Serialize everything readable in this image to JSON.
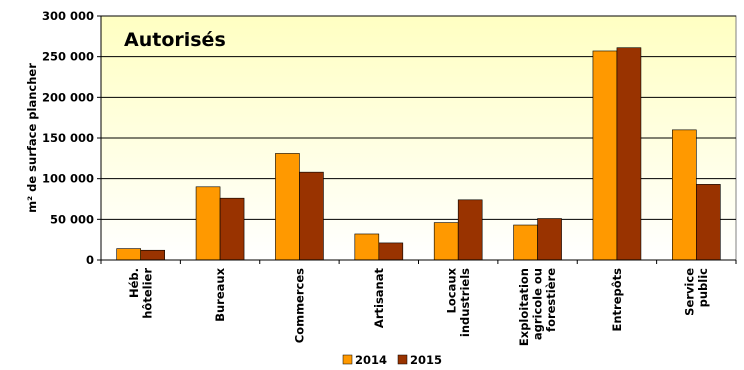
{
  "chart_data": {
    "type": "bar",
    "title": "",
    "panel_label": "Autorisés",
    "ylabel": "m² de surface plancher",
    "xlabel": "",
    "ylim": [
      0,
      300000
    ],
    "yticks": [
      0,
      50000,
      100000,
      150000,
      200000,
      250000,
      300000
    ],
    "ytick_labels": [
      "0",
      "50 000",
      "100 000",
      "150 000",
      "200 000",
      "250 000",
      "300 000"
    ],
    "categories": [
      [
        "Héb.",
        "hôtelier"
      ],
      [
        "Bureaux"
      ],
      [
        "Commerces"
      ],
      [
        "Artisanat"
      ],
      [
        "Locaux",
        "industriels"
      ],
      [
        "Exploitation",
        "agricole ou",
        "forestière"
      ],
      [
        "Entrepôts"
      ],
      [
        "Service",
        "public"
      ]
    ],
    "series": [
      {
        "name": "2014",
        "color": "#FF9900",
        "values": [
          14000,
          90000,
          131000,
          32000,
          46000,
          43000,
          257000,
          160000
        ]
      },
      {
        "name": "2015",
        "color": "#993300",
        "values": [
          12000,
          76000,
          108000,
          21000,
          74000,
          51000,
          261000,
          93000
        ]
      }
    ],
    "grid": true,
    "legend_position": "bottom"
  }
}
